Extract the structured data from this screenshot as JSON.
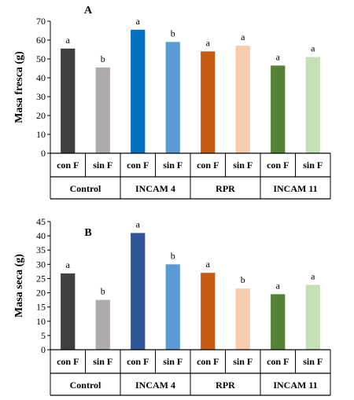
{
  "chart_data": [
    {
      "type": "bar",
      "panel_label": "A",
      "ylabel": "Masa fresca (g)",
      "ylim": [
        0,
        70
      ],
      "yticks": [
        0,
        10,
        20,
        30,
        40,
        50,
        60,
        70
      ],
      "categories": [
        "con F",
        "sin F",
        "con F",
        "sin F",
        "con F",
        "sin F",
        "con F",
        "sin F"
      ],
      "groups": [
        "Control",
        "INCAM 4",
        "RPR",
        "INCAM 11"
      ],
      "values": [
        55.5,
        45.5,
        65.5,
        59,
        54,
        57,
        46.5,
        51
      ],
      "letters": [
        "a",
        "b",
        "a",
        "b",
        "a",
        "a",
        "a",
        "a"
      ],
      "colors": [
        "#404040",
        "#afabab",
        "#0070c0",
        "#5b9bd5",
        "#c55a11",
        "#f8cbad",
        "#548235",
        "#c5e0b4"
      ],
      "legend": "none",
      "grid": false
    },
    {
      "type": "bar",
      "panel_label": "B",
      "ylabel": "Masa seca (g)",
      "ylim": [
        0,
        45
      ],
      "yticks": [
        0,
        5,
        10,
        15,
        20,
        25,
        30,
        35,
        40,
        45
      ],
      "categories": [
        "con F",
        "sin F",
        "con F",
        "sin F",
        "con F",
        "sin F",
        "con F",
        "sin F"
      ],
      "groups": [
        "Control",
        "INCAM 4",
        "RPR",
        "INCAM 11"
      ],
      "values": [
        26.8,
        17.5,
        41,
        30,
        27,
        21.5,
        19.5,
        22.8
      ],
      "letters": [
        "a",
        "b",
        "a",
        "b",
        "a",
        "b",
        "a",
        "a"
      ],
      "colors": [
        "#404040",
        "#afabab",
        "#2f5597",
        "#5b9bd5",
        "#c55a11",
        "#f8cbad",
        "#548235",
        "#c5e0b4"
      ],
      "legend": "none",
      "grid": false
    }
  ]
}
